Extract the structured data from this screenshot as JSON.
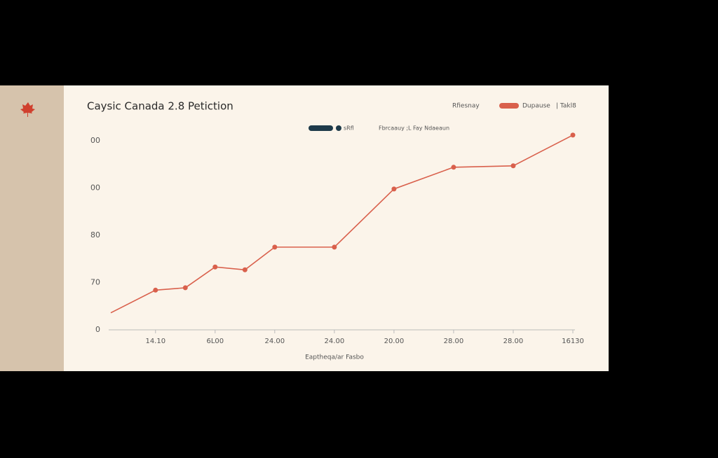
{
  "chart_data": {
    "type": "line",
    "title": "Caysic Canada 2.8 Petiction",
    "subtitle": "Fbrcaauy ;L Fay Ndaeaun",
    "header_labels": [
      "Rfiesnay",
      "| Takl8"
    ],
    "secondary_legend": {
      "label": "sRfl",
      "color": "#1e3a4a"
    },
    "x_label": "Eaptheqa/ar Fasbo",
    "x": [
      -0.5,
      1,
      2,
      3,
      4,
      5,
      7,
      9,
      11,
      13,
      15
    ],
    "series": [
      {
        "name": "Dupause",
        "color": "#d9604c",
        "values": [
          63.6,
          68.4,
          68.9,
          73.3,
          72.7,
          77.5,
          77.5,
          89.8,
          94.4,
          94.7,
          101.2
        ]
      }
    ],
    "xlim": [
      -0.5,
      15
    ],
    "xticks": [
      {
        "value": 1,
        "label": "14.10"
      },
      {
        "value": 3,
        "label": "6L00"
      },
      {
        "value": 5,
        "label": "24.00"
      },
      {
        "value": 7,
        "label": "24.00"
      },
      {
        "value": 9,
        "label": "20.00"
      },
      {
        "value": 11,
        "label": "28.00"
      },
      {
        "value": 13,
        "label": "28.00"
      },
      {
        "value": 15,
        "label": "16130"
      }
    ],
    "ylim": [
      60,
      102
    ],
    "yticks": [
      {
        "value": 60,
        "label": "0"
      },
      70,
      80,
      {
        "value": 90,
        "label": "00"
      },
      {
        "value": 100,
        "label": "00"
      }
    ],
    "grid": false
  }
}
